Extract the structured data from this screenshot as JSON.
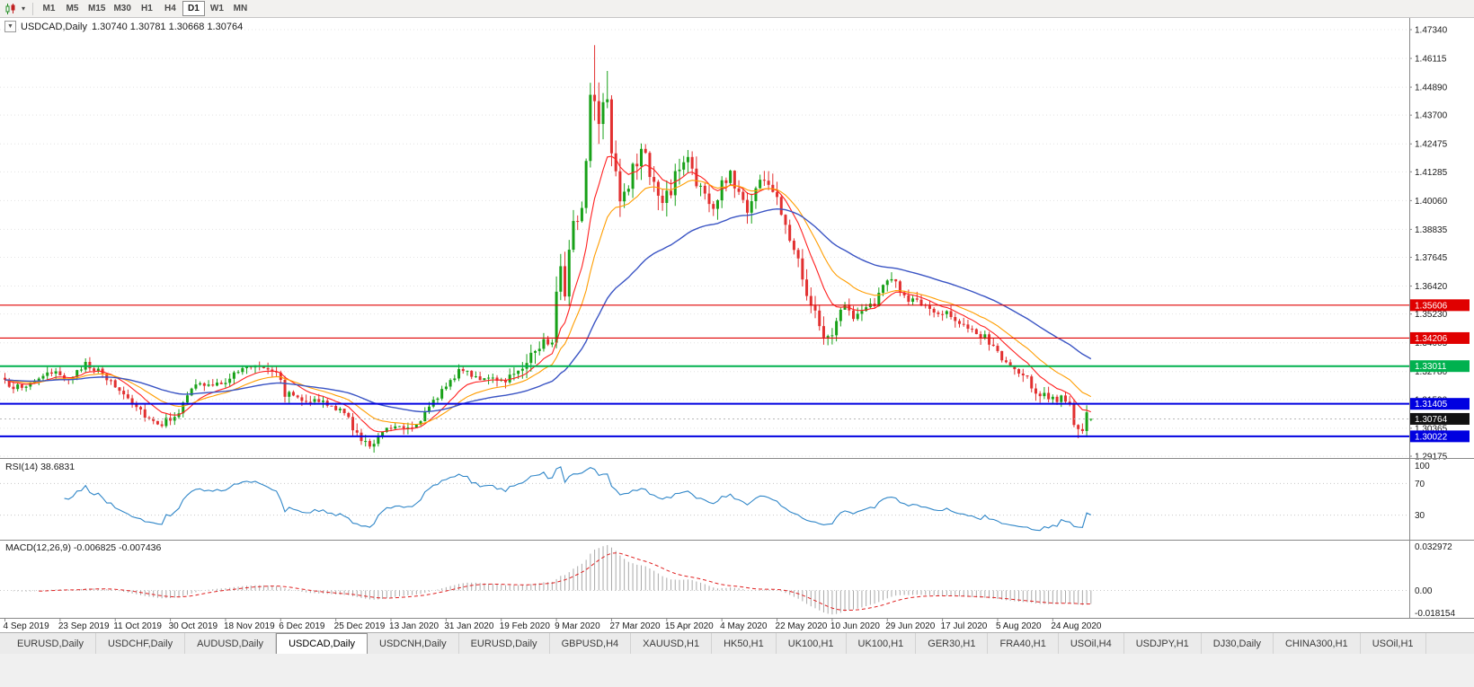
{
  "toolbar": {
    "chart_icon": "candlestick-chart-icon",
    "caret": "▾",
    "timeframes": [
      {
        "label": "M1",
        "active": false
      },
      {
        "label": "M5",
        "active": false
      },
      {
        "label": "M15",
        "active": false
      },
      {
        "label": "M30",
        "active": false
      },
      {
        "label": "H1",
        "active": false
      },
      {
        "label": "H4",
        "active": false
      },
      {
        "label": "D1",
        "active": true
      },
      {
        "label": "W1",
        "active": false
      },
      {
        "label": "MN",
        "active": false
      }
    ]
  },
  "chart": {
    "symbol_timeframe": "USDCAD,Daily",
    "ohlc_line": "1.30740 1.30781 1.30668 1.30764",
    "collapse_arrow": "▼",
    "price_axis_labels": [
      "1.47340",
      "1.46115",
      "1.44890",
      "1.43700",
      "1.42475",
      "1.41285",
      "1.40060",
      "1.38835",
      "1.37645",
      "1.36420",
      "1.35230",
      "1.34005",
      "1.32780",
      "1.31590",
      "1.30365",
      "1.29175"
    ],
    "axis_top": 1.4734,
    "axis_bottom": 1.29175,
    "hlines": [
      {
        "value": 1.35606,
        "label": "1.35606",
        "color": "#e00000",
        "width": 1.2
      },
      {
        "value": 1.34206,
        "label": "1.34206",
        "color": "#e00000",
        "width": 1.2
      },
      {
        "value": 1.33011,
        "label": "1.33011",
        "color": "#00b14f",
        "width": 2
      },
      {
        "value": 1.31405,
        "label": "1.31405",
        "color": "#0000e0",
        "width": 2
      },
      {
        "value": 1.30022,
        "label": "1.30022",
        "color": "#0000e0",
        "width": 2
      }
    ],
    "current_price": {
      "value": 1.30764,
      "label": "1.30764",
      "badge_color": "#111111"
    },
    "colors": {
      "up": "#18a118",
      "down": "#e23030",
      "grid": "#e3e3e3",
      "axis_text": "#1a1a1a"
    }
  },
  "chart_data": {
    "type": "candlestick",
    "symbol": "USDCAD",
    "period": "Daily",
    "bars": 257,
    "bars_per_date_label": 13,
    "date_labels": [
      "4 Sep 2019",
      "23 Sep 2019",
      "11 Oct 2019",
      "30 Oct 2019",
      "18 Nov 2019",
      "6 Dec 2019",
      "25 Dec 2019",
      "13 Jan 2020",
      "31 Jan 2020",
      "19 Feb 2020",
      "9 Mar 2020",
      "27 Mar 2020",
      "15 Apr 2020",
      "4 May 2020",
      "22 May 2020",
      "10 Jun 2020",
      "29 Jun 2020",
      "17 Jul 2020",
      "5 Aug 2020",
      "24 Aug 2020"
    ],
    "close_anchors": [
      [
        0,
        1.323
      ],
      [
        4,
        1.3205
      ],
      [
        8,
        1.3255
      ],
      [
        13,
        1.3268
      ],
      [
        16,
        1.3245
      ],
      [
        19,
        1.332
      ],
      [
        23,
        1.3262
      ],
      [
        26,
        1.3215
      ],
      [
        30,
        1.3152
      ],
      [
        34,
        1.3078
      ],
      [
        37,
        1.3056
      ],
      [
        41,
        1.3108
      ],
      [
        45,
        1.3228
      ],
      [
        49,
        1.3212
      ],
      [
        52,
        1.3242
      ],
      [
        56,
        1.3288
      ],
      [
        59,
        1.3308
      ],
      [
        62,
        1.3298
      ],
      [
        64,
        1.3282
      ],
      [
        66,
        1.3185
      ],
      [
        70,
        1.3168
      ],
      [
        74,
        1.3148
      ],
      [
        78,
        1.3122
      ],
      [
        81,
        1.3078
      ],
      [
        84,
        1.2978
      ],
      [
        86,
        1.2962
      ],
      [
        89,
        1.3032
      ],
      [
        93,
        1.3055
      ],
      [
        96,
        1.3042
      ],
      [
        100,
        1.3118
      ],
      [
        104,
        1.3228
      ],
      [
        108,
        1.3288
      ],
      [
        112,
        1.3252
      ],
      [
        116,
        1.323
      ],
      [
        120,
        1.3268
      ],
      [
        123,
        1.3328
      ],
      [
        126,
        1.3388
      ],
      [
        129,
        1.3422
      ],
      [
        130,
        1.3658
      ],
      [
        131,
        1.3728
      ],
      [
        132,
        1.3642
      ],
      [
        134,
        1.3888
      ],
      [
        136,
        1.3988
      ],
      [
        137,
        1.4178
      ],
      [
        138,
        1.4458
      ],
      [
        139,
        1.4448
      ],
      [
        140,
        1.4378
      ],
      [
        142,
        1.4472
      ],
      [
        143,
        1.4252
      ],
      [
        145,
        1.4032
      ],
      [
        147,
        1.4078
      ],
      [
        149,
        1.4168
      ],
      [
        151,
        1.4218
      ],
      [
        153,
        1.4062
      ],
      [
        155,
        1.3982
      ],
      [
        157,
        1.4058
      ],
      [
        159,
        1.4148
      ],
      [
        161,
        1.4188
      ],
      [
        163,
        1.4092
      ],
      [
        165,
        1.4022
      ],
      [
        167,
        1.3962
      ],
      [
        169,
        1.4068
      ],
      [
        171,
        1.4118
      ],
      [
        173,
        1.4042
      ],
      [
        175,
        1.3972
      ],
      [
        177,
        1.4058
      ],
      [
        179,
        1.4108
      ],
      [
        181,
        1.4042
      ],
      [
        183,
        1.3962
      ],
      [
        185,
        1.3862
      ],
      [
        187,
        1.3762
      ],
      [
        189,
        1.3622
      ],
      [
        191,
        1.3522
      ],
      [
        193,
        1.3442
      ],
      [
        195,
        1.3422
      ],
      [
        197,
        1.3558
      ],
      [
        199,
        1.3532
      ],
      [
        201,
        1.3512
      ],
      [
        203,
        1.3546
      ],
      [
        205,
        1.3562
      ],
      [
        207,
        1.3638
      ],
      [
        209,
        1.3688
      ],
      [
        211,
        1.3622
      ],
      [
        213,
        1.3572
      ],
      [
        215,
        1.3588
      ],
      [
        217,
        1.3546
      ],
      [
        219,
        1.3512
      ],
      [
        221,
        1.3538
      ],
      [
        223,
        1.3528
      ],
      [
        225,
        1.3482
      ],
      [
        227,
        1.3452
      ],
      [
        229,
        1.3432
      ],
      [
        231,
        1.3422
      ],
      [
        233,
        1.3382
      ],
      [
        235,
        1.3332
      ],
      [
        237,
        1.3295
      ],
      [
        239,
        1.3268
      ],
      [
        241,
        1.3242
      ],
      [
        243,
        1.3192
      ],
      [
        245,
        1.3178
      ],
      [
        247,
        1.3168
      ],
      [
        249,
        1.3158
      ],
      [
        251,
        1.3122
      ],
      [
        252,
        1.3062
      ],
      [
        253,
        1.3022
      ],
      [
        254,
        1.3042
      ],
      [
        255,
        1.3088
      ],
      [
        256,
        1.30764
      ]
    ],
    "volatility_anchors": [
      [
        0,
        0.0032
      ],
      [
        60,
        0.0034
      ],
      [
        80,
        0.004
      ],
      [
        100,
        0.0034
      ],
      [
        120,
        0.004
      ],
      [
        128,
        0.0085
      ],
      [
        133,
        0.0105
      ],
      [
        140,
        0.0115
      ],
      [
        146,
        0.0095
      ],
      [
        152,
        0.0085
      ],
      [
        160,
        0.0075
      ],
      [
        170,
        0.007
      ],
      [
        182,
        0.0065
      ],
      [
        192,
        0.0058
      ],
      [
        200,
        0.0045
      ],
      [
        215,
        0.0042
      ],
      [
        230,
        0.0038
      ],
      [
        248,
        0.0042
      ],
      [
        256,
        0.004
      ]
    ],
    "bar_overrides": {
      "86": {
        "low": 1.2949
      },
      "139": {
        "high": 1.4668
      },
      "142": {
        "high": 1.4558
      },
      "253": {
        "low": 1.2994
      },
      "256": {
        "open": 1.3074,
        "high": 1.30781,
        "low": 1.30668,
        "close": 1.30764
      }
    },
    "overlays": [
      {
        "name": "ma-fast",
        "type": "ema",
        "period": 10,
        "color": "#ff2020",
        "width": 1.1
      },
      {
        "name": "ma-mid",
        "type": "ema",
        "period": 20,
        "color": "#ff9d00",
        "width": 1.1
      },
      {
        "name": "ma-slow",
        "type": "ema",
        "period": 50,
        "color": "#3a54c4",
        "width": 1.4
      }
    ]
  },
  "rsi_panel": {
    "label": "RSI(14) 38.6831",
    "period": 14,
    "value": 38.6831,
    "axis_labels": [
      "100",
      "70",
      "30"
    ],
    "levels": [
      70,
      30
    ],
    "range": [
      0,
      100
    ],
    "color": "#2f86c8"
  },
  "macd_panel": {
    "label": "MACD(12,26,9) -0.006825 -0.007436",
    "macd_value": -0.006825,
    "signal_value": -0.007436,
    "axis_labels": [
      "0.032972",
      "0.00",
      "-0.018154"
    ],
    "max": 0.032972,
    "min": -0.018154,
    "hist_color": "#a9a9a9",
    "signal_color": "#e02020"
  },
  "tabs": [
    {
      "label": "EURUSD,Daily",
      "active": false
    },
    {
      "label": "USDCHF,Daily",
      "active": false
    },
    {
      "label": "AUDUSD,Daily",
      "active": false
    },
    {
      "label": "USDCAD,Daily",
      "active": true
    },
    {
      "label": "USDCNH,Daily",
      "active": false
    },
    {
      "label": "EURUSD,Daily",
      "active": false
    },
    {
      "label": "GBPUSD,H4",
      "active": false
    },
    {
      "label": "XAUUSD,H1",
      "active": false
    },
    {
      "label": "HK50,H1",
      "active": false
    },
    {
      "label": "UK100,H1",
      "active": false
    },
    {
      "label": "UK100,H1",
      "active": false
    },
    {
      "label": "GER30,H1",
      "active": false
    },
    {
      "label": "FRA40,H1",
      "active": false
    },
    {
      "label": "USOil,H4",
      "active": false
    },
    {
      "label": "USDJPY,H1",
      "active": false
    },
    {
      "label": "DJ30,Daily",
      "active": false
    },
    {
      "label": "CHINA300,H1",
      "active": false
    },
    {
      "label": "USOil,H1",
      "active": false
    }
  ]
}
